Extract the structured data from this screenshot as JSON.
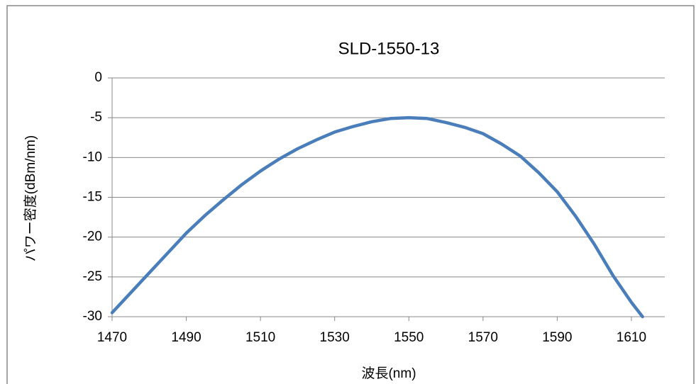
{
  "chart_data": {
    "type": "line",
    "title": "SLD-1550-13",
    "x_label": "波長(nm)",
    "y_label": "パワー密度(dBm/nm)",
    "x": [
      1470,
      1475,
      1480,
      1485,
      1490,
      1495,
      1500,
      1505,
      1510,
      1515,
      1520,
      1525,
      1530,
      1535,
      1540,
      1545,
      1550,
      1555,
      1560,
      1565,
      1570,
      1575,
      1580,
      1585,
      1590,
      1595,
      1600,
      1605,
      1610,
      1613
    ],
    "series": [
      {
        "name": "SLD-1550-13",
        "color": "#4a7ebb",
        "values": [
          -29.5,
          -27.0,
          -24.5,
          -22.0,
          -19.5,
          -17.3,
          -15.3,
          -13.4,
          -11.7,
          -10.2,
          -8.9,
          -7.8,
          -6.8,
          -6.1,
          -5.5,
          -5.1,
          -5.0,
          -5.1,
          -5.6,
          -6.2,
          -7.0,
          -8.3,
          -9.8,
          -11.9,
          -14.3,
          -17.4,
          -20.9,
          -24.8,
          -28.2,
          -30.0
        ]
      }
    ],
    "xlim": [
      1470,
      1619
    ],
    "ylim": [
      -30,
      0
    ],
    "xticks": [
      1470,
      1490,
      1510,
      1530,
      1550,
      1570,
      1590,
      1610
    ],
    "yticks": [
      0,
      -5,
      -10,
      -15,
      -20,
      -25,
      -30
    ],
    "grid": true
  }
}
